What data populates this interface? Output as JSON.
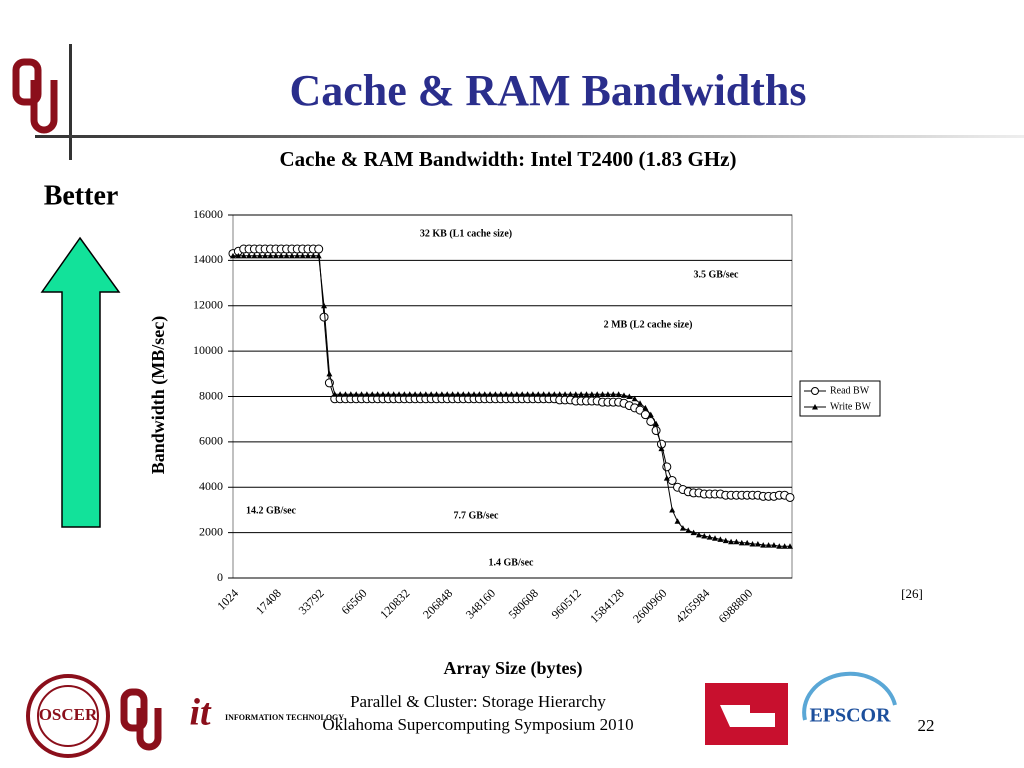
{
  "slide_title": "Cache & RAM Bandwidths",
  "side_label": "Better",
  "reference": "[26]",
  "footer": [
    "Parallel & Cluster: Storage Hierarchy",
    "Oklahoma Supercomputing Symposium 2010"
  ],
  "page_number": "22",
  "logos": [
    "OSCER",
    "INFORMATION TECHNOLOGY",
    "EPSCOR"
  ],
  "chart_data": {
    "type": "line",
    "title": "Cache & RAM Bandwidth: Intel T2400 (1.83 GHz)",
    "x_label": "Array Size (bytes)",
    "y_label": "Bandwidth (MB/sec)",
    "ylim": [
      0,
      16000
    ],
    "yticks": [
      0,
      2000,
      4000,
      6000,
      8000,
      10000,
      12000,
      14000,
      16000
    ],
    "grid": true,
    "legend": "right",
    "categories": [
      "1024",
      null,
      null,
      null,
      null,
      null,
      null,
      null,
      "17408",
      null,
      null,
      null,
      null,
      null,
      null,
      null,
      "33792",
      null,
      null,
      null,
      null,
      null,
      null,
      null,
      "66560",
      null,
      null,
      null,
      null,
      null,
      null,
      null,
      "120832",
      null,
      null,
      null,
      null,
      null,
      null,
      null,
      "206848",
      null,
      null,
      null,
      null,
      null,
      null,
      null,
      "348160",
      null,
      null,
      null,
      null,
      null,
      null,
      null,
      "580608",
      null,
      null,
      null,
      null,
      null,
      null,
      null,
      "960512",
      null,
      null,
      null,
      null,
      null,
      null,
      null,
      "1584128",
      null,
      null,
      null,
      null,
      null,
      null,
      null,
      "2600960",
      null,
      null,
      null,
      null,
      null,
      null,
      null,
      "4265984",
      null,
      null,
      null,
      null,
      null,
      null,
      null,
      "6988800",
      null,
      null,
      null,
      null,
      null,
      null,
      null,
      null
    ],
    "series": [
      {
        "name": "Read BW",
        "color": "#000000",
        "marker": "circle",
        "values": [
          14300,
          14400,
          14500,
          14500,
          14500,
          14500,
          14500,
          14500,
          14500,
          14500,
          14500,
          14500,
          14500,
          14500,
          14500,
          14500,
          14500,
          11500,
          8600,
          7900,
          7900,
          7900,
          7900,
          7900,
          7900,
          7900,
          7900,
          7900,
          7900,
          7900,
          7900,
          7900,
          7900,
          7900,
          7900,
          7900,
          7900,
          7900,
          7900,
          7900,
          7900,
          7900,
          7900,
          7900,
          7900,
          7900,
          7900,
          7900,
          7900,
          7900,
          7900,
          7900,
          7900,
          7900,
          7900,
          7900,
          7900,
          7900,
          7900,
          7900,
          7900,
          7850,
          7850,
          7850,
          7800,
          7800,
          7800,
          7800,
          7800,
          7750,
          7750,
          7750,
          7750,
          7700,
          7600,
          7500,
          7400,
          7200,
          6900,
          6500,
          5900,
          4900,
          4300,
          4000,
          3900,
          3800,
          3750,
          3750,
          3700,
          3700,
          3700,
          3700,
          3650,
          3650,
          3650,
          3650,
          3650,
          3650,
          3650,
          3600,
          3600,
          3600,
          3650,
          3650,
          3550
        ]
      },
      {
        "name": "Write BW",
        "color": "#000000",
        "marker": "triangle",
        "values": [
          14200,
          14200,
          14200,
          14200,
          14200,
          14200,
          14200,
          14200,
          14200,
          14200,
          14200,
          14200,
          14200,
          14200,
          14200,
          14200,
          14200,
          12000,
          9000,
          8100,
          8100,
          8100,
          8100,
          8100,
          8100,
          8100,
          8100,
          8100,
          8100,
          8100,
          8100,
          8100,
          8100,
          8100,
          8100,
          8100,
          8100,
          8100,
          8100,
          8100,
          8100,
          8100,
          8100,
          8100,
          8100,
          8100,
          8100,
          8100,
          8100,
          8100,
          8100,
          8100,
          8100,
          8100,
          8100,
          8100,
          8100,
          8100,
          8100,
          8100,
          8100,
          8100,
          8100,
          8100,
          8100,
          8100,
          8100,
          8100,
          8100,
          8100,
          8100,
          8100,
          8100,
          8050,
          8000,
          7900,
          7700,
          7500,
          7200,
          6800,
          5700,
          4400,
          3000,
          2500,
          2200,
          2100,
          2000,
          1900,
          1850,
          1800,
          1750,
          1700,
          1650,
          1600,
          1600,
          1550,
          1550,
          1500,
          1500,
          1450,
          1450,
          1450,
          1400,
          1400,
          1400
        ]
      }
    ],
    "annotations": [
      "32 KB (L1 cache size)",
      "3.5 GB/sec",
      "2 MB (L2 cache size)",
      "14.2 GB/sec",
      "7.7 GB/sec",
      "1.4 GB/sec"
    ]
  }
}
